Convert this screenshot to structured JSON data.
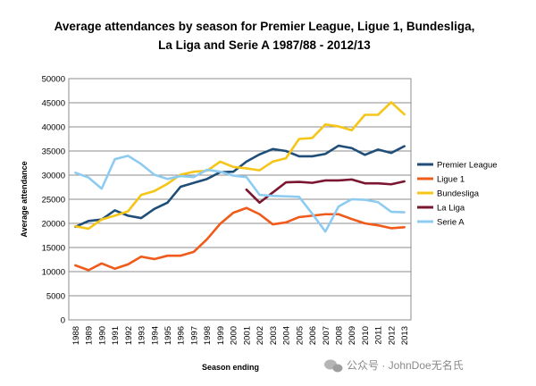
{
  "chart_data": {
    "type": "line",
    "title_lines": [
      "Average attendances by season for Premier League, Ligue 1, Bundesliga,",
      "La Liga and Serie A 1987/88 - 2012/13"
    ],
    "xlabel": "Season ending",
    "ylabel": "Average attendance",
    "x": [
      "1988",
      "1989",
      "1990",
      "1991",
      "1992",
      "1993",
      "1994",
      "1995",
      "1996",
      "1997",
      "1998",
      "1999",
      "2000",
      "2001",
      "2002",
      "2003",
      "2004",
      "2005",
      "2006",
      "2007",
      "2008",
      "2009",
      "2010",
      "2011",
      "2012",
      "2013"
    ],
    "ylim": [
      0,
      50000
    ],
    "yticks": [
      0,
      5000,
      10000,
      15000,
      20000,
      25000,
      30000,
      35000,
      40000,
      45000,
      50000
    ],
    "grid": true,
    "legend_position": "right",
    "series": [
      {
        "name": "Premier League",
        "color": "#1f4e79",
        "values": [
          19300,
          20500,
          20800,
          22700,
          21600,
          21100,
          23000,
          24300,
          27600,
          28400,
          29200,
          30600,
          30700,
          32800,
          34300,
          35400,
          35000,
          33900,
          33900,
          34400,
          36100,
          35600,
          34200,
          35300,
          34600,
          36000
        ]
      },
      {
        "name": "Ligue 1",
        "color": "#f05a1a",
        "values": [
          11300,
          10300,
          11700,
          10600,
          11500,
          13100,
          12600,
          13300,
          13300,
          14100,
          16700,
          19900,
          22200,
          23200,
          21900,
          19800,
          20200,
          21300,
          21600,
          21900,
          21900,
          20900,
          20000,
          19600,
          19000,
          19200
        ]
      },
      {
        "name": "Bundesliga",
        "color": "#f5c518",
        "values": [
          19400,
          18900,
          20800,
          21600,
          22500,
          25900,
          26700,
          28200,
          30100,
          30700,
          30900,
          32800,
          31700,
          31400,
          31000,
          32800,
          33500,
          37500,
          37700,
          40500,
          40100,
          39300,
          42500,
          42500,
          45100,
          42600
        ]
      },
      {
        "name": "La Liga",
        "color": "#7b1631",
        "values": [
          null,
          null,
          null,
          null,
          null,
          null,
          null,
          null,
          null,
          null,
          null,
          null,
          null,
          27000,
          24300,
          26400,
          28500,
          28600,
          28400,
          28900,
          28900,
          29100,
          28300,
          28300,
          28100,
          28700
        ]
      },
      {
        "name": "Serie A",
        "color": "#8ecbf0",
        "values": [
          30500,
          29500,
          27200,
          33300,
          34000,
          32300,
          30100,
          29200,
          29800,
          29600,
          31100,
          30700,
          29900,
          29600,
          25900,
          25700,
          25600,
          25500,
          22000,
          18300,
          23500,
          25000,
          24900,
          24400,
          22400,
          22300
        ]
      }
    ]
  },
  "watermark": {
    "text": "公众号 · JohnDoe无名氏",
    "icon": "wechat-icon"
  }
}
